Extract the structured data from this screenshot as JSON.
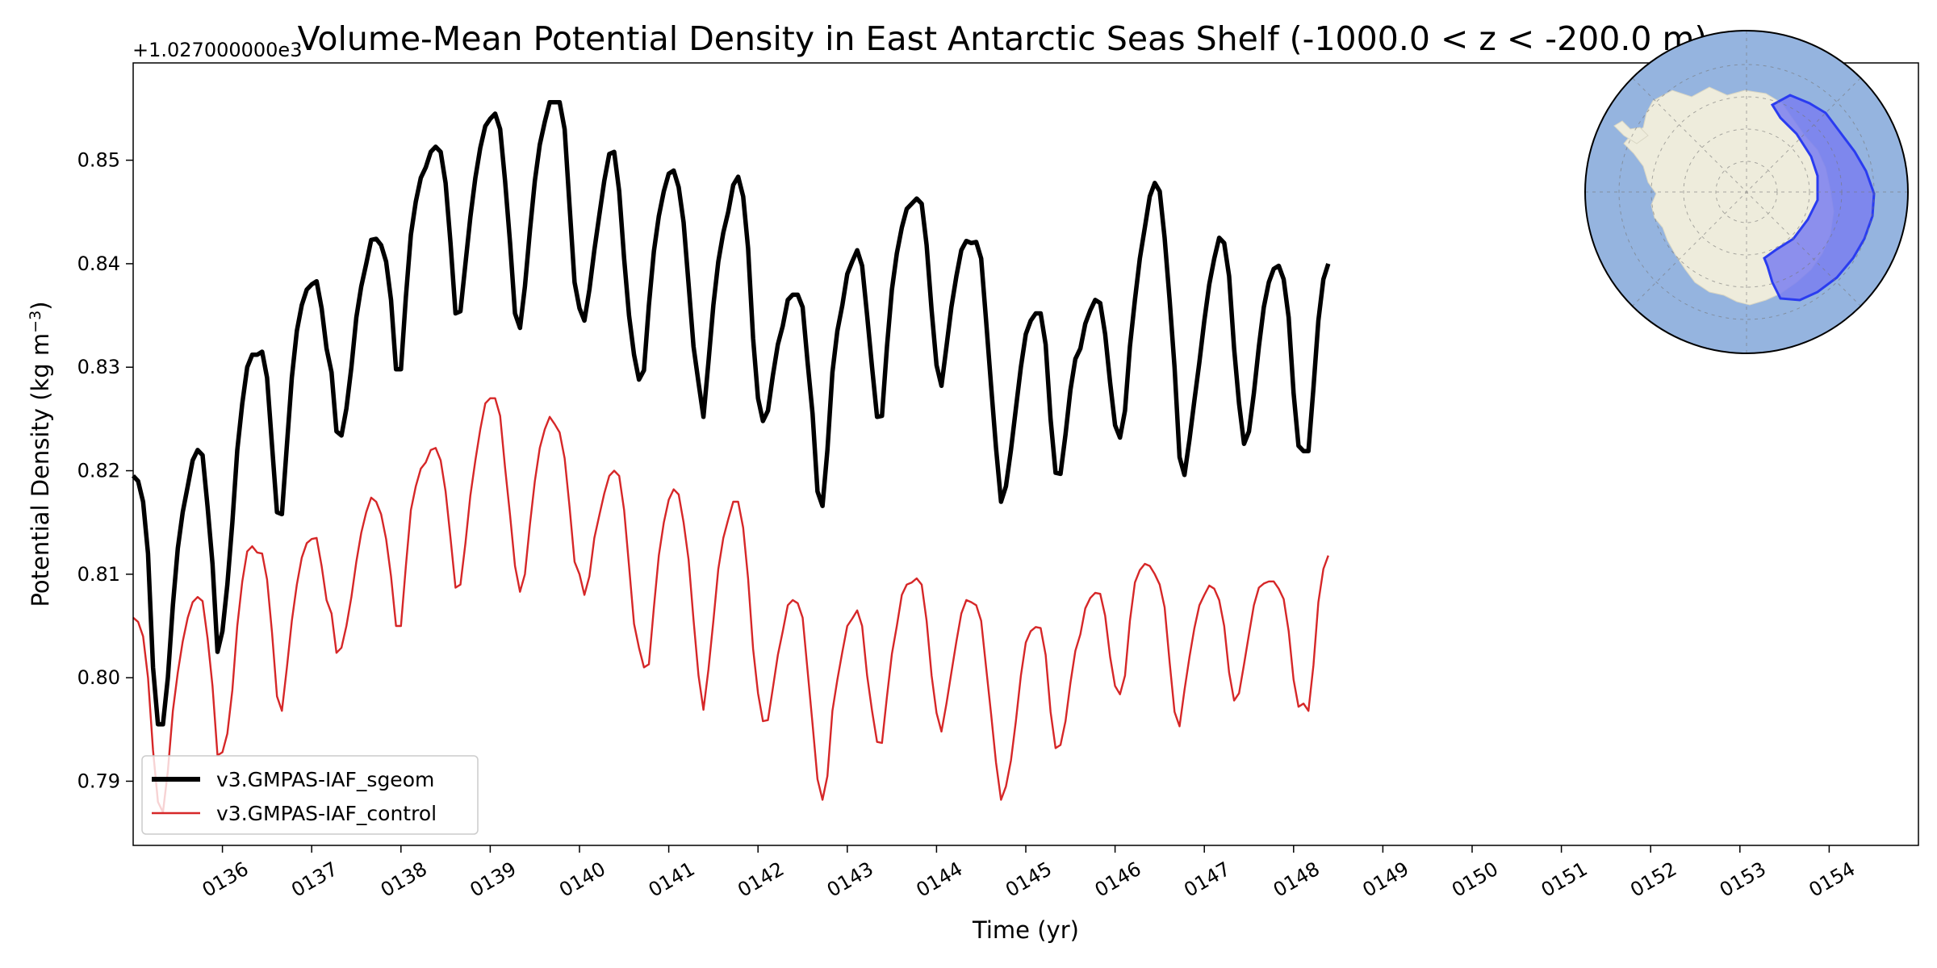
{
  "chart_data": {
    "type": "line",
    "title": "Volume-Mean Potential Density in East Antarctic Seas Shelf (-1000.0 < z < -200.0 m)",
    "xlabel": "Time (yr)",
    "ylabel": "Potential Density (kg m",
    "ylabel_unit_sup": "−3",
    "ylabel_suffix": ")",
    "y_offset_label": "+1.027000000e3",
    "xlim": [
      135.0,
      155.0
    ],
    "ylim": [
      0.7838,
      0.8594
    ],
    "x_tick_values": [
      136,
      137,
      138,
      139,
      140,
      141,
      142,
      143,
      144,
      145,
      146,
      147,
      148,
      149,
      150,
      151,
      152,
      153,
      154
    ],
    "x_tick_labels": [
      "0136",
      "0137",
      "0138",
      "0139",
      "0140",
      "0141",
      "0142",
      "0143",
      "0144",
      "0145",
      "0146",
      "0147",
      "0148",
      "0149",
      "0150",
      "0151",
      "0152",
      "0153",
      "0154"
    ],
    "y_tick_values": [
      0.79,
      0.8,
      0.81,
      0.82,
      0.83,
      0.84,
      0.85
    ],
    "y_tick_labels": [
      "0.79",
      "0.80",
      "0.81",
      "0.82",
      "0.83",
      "0.84",
      "0.85"
    ],
    "legend_position": "lower left",
    "grid": false,
    "series": [
      {
        "name": "v3.GMPAS-IAF_sgeom",
        "color": "#000000",
        "years_start": 135,
        "values": [
          [
            0.8195,
            0.819,
            0.817,
            0.812,
            0.801,
            0.7955,
            0.7955,
            0.8,
            0.807,
            0.8125,
            0.816,
            0.8185,
            0.821,
            0.822,
            0.8215,
            0.8165,
            0.811,
            0.8025
          ],
          [
            0.8045,
            0.809,
            0.815,
            0.822,
            0.8265,
            0.83,
            0.8312,
            0.8312,
            0.8315,
            0.829,
            0.8225,
            0.816,
            0.8158,
            0.8225,
            0.829,
            0.8335,
            0.836,
            0.8375
          ],
          [
            0.838,
            0.8383,
            0.8357,
            0.8318,
            0.8295,
            0.8238,
            0.8234,
            0.826,
            0.83,
            0.8348,
            0.8378,
            0.84,
            0.8423,
            0.8424,
            0.8418,
            0.8402,
            0.8365,
            0.8298
          ],
          [
            0.8298,
            0.8368,
            0.8428,
            0.846,
            0.8483,
            0.8493,
            0.8508,
            0.8513,
            0.8508,
            0.8478,
            0.842,
            0.8352,
            0.8354,
            0.84,
            0.8445,
            0.8483,
            0.8512,
            0.8533
          ],
          [
            0.854,
            0.8545,
            0.853,
            0.848,
            0.842,
            0.8352,
            0.8338,
            0.8378,
            0.8432,
            0.848,
            0.8515,
            0.8537,
            0.8556,
            0.8556,
            0.8556,
            0.853,
            0.8456,
            0.8382
          ],
          [
            0.8357,
            0.8345,
            0.8375,
            0.8413,
            0.8447,
            0.848,
            0.8506,
            0.8508,
            0.847,
            0.8405,
            0.835,
            0.8312,
            0.8288,
            0.8297,
            0.836,
            0.8412,
            0.8446,
            0.847
          ],
          [
            0.8487,
            0.849,
            0.8474,
            0.844,
            0.838,
            0.832,
            0.8285,
            0.8252,
            0.8305,
            0.836,
            0.8402,
            0.843,
            0.845,
            0.8476,
            0.8484,
            0.8465,
            0.8415,
            0.8328
          ],
          [
            0.827,
            0.8248,
            0.8258,
            0.8292,
            0.8322,
            0.834,
            0.8365,
            0.837,
            0.837,
            0.8358,
            0.8305,
            0.8255,
            0.818,
            0.8166,
            0.822,
            0.8295,
            0.8335,
            0.836
          ],
          [
            0.839,
            0.8402,
            0.8413,
            0.8398,
            0.835,
            0.83,
            0.8252,
            0.8253,
            0.832,
            0.8375,
            0.841,
            0.8435,
            0.8453,
            0.8458,
            0.8463,
            0.8458,
            0.8418,
            0.8355
          ],
          [
            0.8302,
            0.8282,
            0.832,
            0.8358,
            0.8388,
            0.8413,
            0.8422,
            0.842,
            0.8421,
            0.8405,
            0.8345,
            0.8282,
            0.8222,
            0.817,
            0.8185,
            0.822,
            0.826,
            0.83
          ],
          [
            0.8332,
            0.8345,
            0.8352,
            0.8352,
            0.8322,
            0.825,
            0.8198,
            0.8197,
            0.8235,
            0.8278,
            0.8308,
            0.8318,
            0.8342,
            0.8355,
            0.8365,
            0.8362,
            0.8332,
            0.8285
          ],
          [
            0.8244,
            0.8232,
            0.8258,
            0.832,
            0.8365,
            0.8405,
            0.8435,
            0.8465,
            0.8478,
            0.847,
            0.8425,
            0.8365,
            0.83,
            0.8213,
            0.8196,
            0.823,
            0.8268,
            0.8305
          ],
          [
            0.8345,
            0.838,
            0.8405,
            0.8425,
            0.842,
            0.8388,
            0.8318,
            0.8265,
            0.8226,
            0.8238,
            0.8275,
            0.832,
            0.8358,
            0.8382,
            0.8395,
            0.8398,
            0.8385,
            0.8348
          ],
          [
            0.8275,
            0.8224,
            0.8219,
            0.8219,
            0.828,
            0.8345,
            0.8385,
            0.84
          ]
        ]
      },
      {
        "name": "v3.GMPAS-IAF_control",
        "color": "#d62728",
        "years_start": 135,
        "values": [
          [
            0.8058,
            0.8054,
            0.804,
            0.8,
            0.793,
            0.788,
            0.787,
            0.791,
            0.7968,
            0.8005,
            0.8035,
            0.8058,
            0.8073,
            0.8078,
            0.8074,
            0.8038,
            0.7992,
            0.7925
          ],
          [
            0.7928,
            0.7946,
            0.7988,
            0.805,
            0.8093,
            0.8122,
            0.8127,
            0.8121,
            0.812,
            0.8095,
            0.8044,
            0.7982,
            0.7968,
            0.801,
            0.8055,
            0.809,
            0.8116,
            0.813
          ],
          [
            0.8134,
            0.8135,
            0.8108,
            0.8075,
            0.8062,
            0.8024,
            0.8029,
            0.805,
            0.8078,
            0.8112,
            0.814,
            0.816,
            0.8174,
            0.817,
            0.8158,
            0.8134,
            0.8098,
            0.805
          ],
          [
            0.805,
            0.8108,
            0.8162,
            0.8185,
            0.8202,
            0.8208,
            0.822,
            0.8222,
            0.821,
            0.818,
            0.8135,
            0.8087,
            0.809,
            0.813,
            0.8176,
            0.821,
            0.824,
            0.8265
          ],
          [
            0.827,
            0.827,
            0.8253,
            0.8203,
            0.8157,
            0.8108,
            0.8083,
            0.81,
            0.8148,
            0.819,
            0.8222,
            0.824,
            0.8252,
            0.8245,
            0.8237,
            0.8212,
            0.8165,
            0.8112
          ],
          [
            0.81,
            0.808,
            0.8098,
            0.8135,
            0.8157,
            0.8178,
            0.8195,
            0.82,
            0.8195,
            0.8162,
            0.8108,
            0.8052,
            0.8029,
            0.801,
            0.8013,
            0.8068,
            0.8118,
            0.815
          ],
          [
            0.8172,
            0.8182,
            0.8177,
            0.815,
            0.8114,
            0.8056,
            0.8002,
            0.7969,
            0.8008,
            0.8055,
            0.8105,
            0.8135,
            0.8153,
            0.817,
            0.817,
            0.8145,
            0.8096,
            0.8028
          ],
          [
            0.7985,
            0.7958,
            0.7959,
            0.799,
            0.8022,
            0.8045,
            0.807,
            0.8075,
            0.8072,
            0.8058,
            0.8007,
            0.7955,
            0.7902,
            0.7882,
            0.7905,
            0.7968,
            0.7998,
            0.8025
          ],
          [
            0.805,
            0.8057,
            0.8065,
            0.805,
            0.8002,
            0.7968,
            0.7938,
            0.7937,
            0.7982,
            0.8023,
            0.805,
            0.808,
            0.809,
            0.8092,
            0.8096,
            0.809,
            0.8055,
            0.8002
          ],
          [
            0.7966,
            0.7948,
            0.7975,
            0.8005,
            0.8035,
            0.8062,
            0.8075,
            0.8073,
            0.807,
            0.8055,
            0.801,
            0.7965,
            0.7918,
            0.7882,
            0.7895,
            0.792,
            0.7958,
            0.8002
          ],
          [
            0.8034,
            0.8045,
            0.8049,
            0.8048,
            0.8022,
            0.7967,
            0.7932,
            0.7935,
            0.7958,
            0.7995,
            0.8026,
            0.8042,
            0.8067,
            0.8077,
            0.8082,
            0.8081,
            0.806,
            0.802
          ],
          [
            0.7992,
            0.7984,
            0.8002,
            0.8055,
            0.8092,
            0.8104,
            0.811,
            0.8108,
            0.81,
            0.809,
            0.8068,
            0.8015,
            0.7967,
            0.7953,
            0.7988,
            0.802,
            0.8048,
            0.807
          ],
          [
            0.808,
            0.8089,
            0.8086,
            0.8075,
            0.805,
            0.8005,
            0.7978,
            0.7985,
            0.8013,
            0.8042,
            0.807,
            0.8087,
            0.8091,
            0.8093,
            0.8093,
            0.8086,
            0.8076,
            0.8045
          ],
          [
            0.7998,
            0.7972,
            0.7975,
            0.7968,
            0.8012,
            0.8073,
            0.8105,
            0.8118
          ]
        ]
      }
    ],
    "inset_map": {
      "projection": "south-polar-stereographic",
      "highlighted_region": "East Antarctic Seas Shelf",
      "ocean_color": "#95b4df",
      "land_color": "#eeecdc",
      "region_fill_color": "#7a7ff0",
      "region_edge_color": "#2a3cf0"
    }
  }
}
